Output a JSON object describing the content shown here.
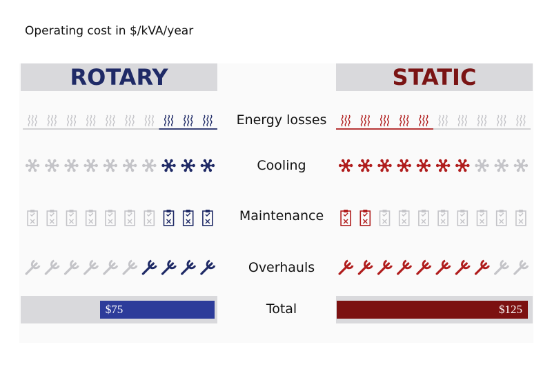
{
  "title": "Operating cost in $/kVA/year",
  "chart_data": {
    "type": "table",
    "columns": [
      "ROTARY",
      "STATIC"
    ],
    "rows": [
      {
        "label": "Energy losses",
        "icon": "heat-waves-icon",
        "rotary": 3,
        "static": 5,
        "of": 10
      },
      {
        "label": "Cooling",
        "icon": "snowflake-icon",
        "rotary": 3,
        "static": 7,
        "of": 10
      },
      {
        "label": "Maintenance",
        "icon": "clipboard-check-icon",
        "rotary": 3,
        "static": 2,
        "of": 10
      },
      {
        "label": "Overhauls",
        "icon": "wrench-icon",
        "rotary": 4,
        "static": 8,
        "of": 10
      }
    ],
    "total": {
      "label": "Total",
      "rotary": "$75",
      "static": "$125",
      "rotary_value": 75,
      "static_value": 125
    }
  },
  "colors": {
    "rotary": "#1f2a66",
    "rotary_bar": "#2d3c9a",
    "static": "#b01d1d",
    "static_bar": "#7c1111",
    "inactive": "#c4c4c8",
    "header_bg": "#d9d9dc"
  }
}
